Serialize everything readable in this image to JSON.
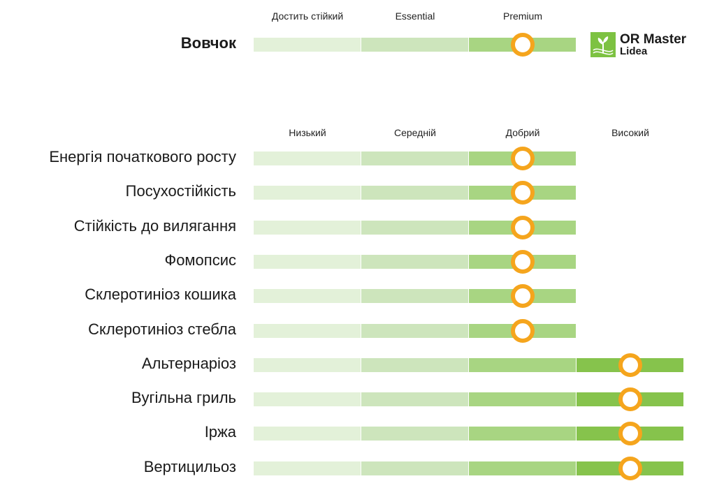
{
  "chart_data": [
    {
      "type": "bar",
      "title": "",
      "product": "Вовчок",
      "levels": [
        "Достить стійкий",
        "Essential",
        "Premium"
      ],
      "colors": [
        "#e3f1d9",
        "#cde5bc",
        "#a8d582"
      ],
      "marker_color": "#f5a51d",
      "rows": [
        {
          "label": "Вовчок",
          "value": 3
        }
      ]
    },
    {
      "type": "bar",
      "title": "",
      "levels": [
        "Низький",
        "Середній",
        "Добрий",
        "Високий"
      ],
      "colors": [
        "#e3f1d9",
        "#cde5bc",
        "#a8d582",
        "#86c34c"
      ],
      "marker_color": "#f5a51d",
      "rows": [
        {
          "label": "Енергія початкового росту",
          "value": 3
        },
        {
          "label": "Посухостійкість",
          "value": 3
        },
        {
          "label": "Стійкість до вилягання",
          "value": 3
        },
        {
          "label": "Фомопсис",
          "value": 3
        },
        {
          "label": "Склеротиніоз кошика",
          "value": 3
        },
        {
          "label": "Склеротиніоз стебла",
          "value": 3
        },
        {
          "label": "Альтернаріоз",
          "value": 4
        },
        {
          "label": "Вугільна гриль",
          "value": 4
        },
        {
          "label": "Іржа",
          "value": 4
        },
        {
          "label": "Вертицильоз",
          "value": 4
        }
      ]
    }
  ],
  "logo": {
    "title": "OR Master",
    "subtitle": "Lidea",
    "icon": "sprout-dna-icon"
  }
}
